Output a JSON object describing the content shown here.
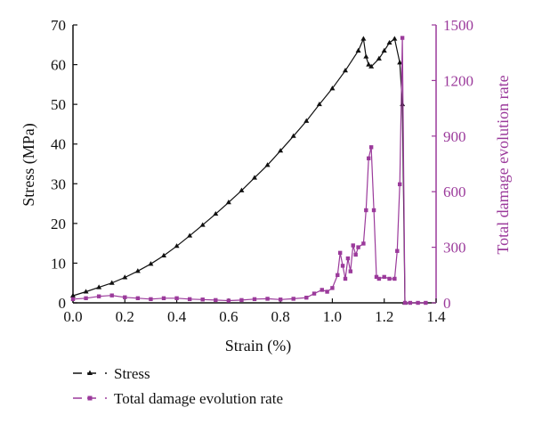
{
  "chart_data": {
    "type": "line",
    "xlabel": "Strain (%)",
    "ylabel": "Stress (MPa)",
    "y2label": "Total damage evolution rate",
    "xlim": [
      0,
      1.4
    ],
    "ylim": [
      0,
      70
    ],
    "y2lim": [
      0,
      1500
    ],
    "xticks": [
      "0.0",
      "0.2",
      "0.4",
      "0.6",
      "0.8",
      "1.0",
      "1.2",
      "1.4"
    ],
    "yticks": [
      "0",
      "10",
      "20",
      "30",
      "40",
      "50",
      "60",
      "70"
    ],
    "y2ticks": [
      "0",
      "300",
      "600",
      "900",
      "1200",
      "1500"
    ],
    "grid": false,
    "legend_position": "bottom-left",
    "colors": {
      "stress": "#111111",
      "damage": "#9b3a9b"
    },
    "series": [
      {
        "name": "Stress",
        "axis": "left",
        "marker": "triangle",
        "x": [
          0.0,
          0.05,
          0.1,
          0.15,
          0.2,
          0.25,
          0.3,
          0.35,
          0.4,
          0.45,
          0.5,
          0.55,
          0.6,
          0.65,
          0.7,
          0.75,
          0.8,
          0.85,
          0.9,
          0.95,
          1.0,
          1.05,
          1.1,
          1.12,
          1.13,
          1.14,
          1.15,
          1.18,
          1.2,
          1.22,
          1.24,
          1.26,
          1.27,
          1.28
        ],
        "values": [
          1.8,
          2.8,
          3.9,
          5.0,
          6.4,
          8.0,
          9.8,
          11.9,
          14.3,
          16.9,
          19.6,
          22.4,
          25.3,
          28.3,
          31.5,
          34.7,
          38.3,
          42.0,
          45.8,
          50.0,
          54.0,
          58.5,
          63.5,
          66.5,
          62.0,
          60.0,
          59.5,
          61.5,
          63.5,
          65.5,
          66.5,
          60.5,
          50.0,
          0.0
        ]
      },
      {
        "name": "Total damage evolution rate",
        "axis": "right",
        "marker": "square",
        "x": [
          0.0,
          0.05,
          0.1,
          0.15,
          0.2,
          0.25,
          0.3,
          0.35,
          0.4,
          0.45,
          0.5,
          0.55,
          0.6,
          0.65,
          0.7,
          0.75,
          0.8,
          0.85,
          0.9,
          0.93,
          0.96,
          0.98,
          1.0,
          1.02,
          1.03,
          1.04,
          1.05,
          1.06,
          1.07,
          1.08,
          1.09,
          1.1,
          1.12,
          1.13,
          1.14,
          1.15,
          1.16,
          1.17,
          1.18,
          1.2,
          1.22,
          1.24,
          1.25,
          1.26,
          1.27,
          1.28,
          1.3,
          1.33,
          1.36
        ],
        "values": [
          20,
          25,
          35,
          40,
          30,
          25,
          20,
          25,
          25,
          20,
          18,
          15,
          12,
          15,
          20,
          22,
          18,
          22,
          28,
          50,
          70,
          60,
          80,
          150,
          270,
          200,
          130,
          240,
          170,
          310,
          260,
          300,
          320,
          500,
          780,
          840,
          500,
          140,
          130,
          140,
          130,
          130,
          280,
          640,
          1430,
          0,
          0,
          0,
          0
        ]
      }
    ]
  },
  "legend": {
    "stress_label": "Stress",
    "damage_label": "Total damage evolution rate"
  }
}
